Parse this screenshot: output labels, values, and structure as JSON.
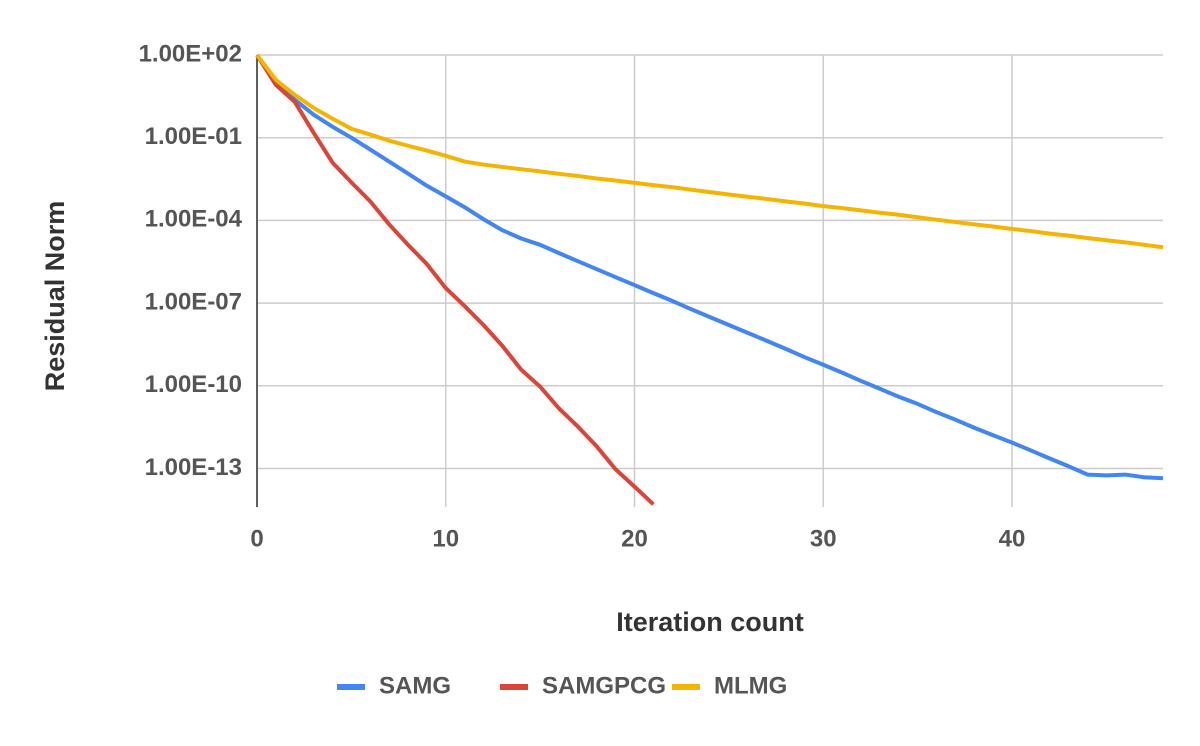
{
  "chart_data": {
    "type": "line",
    "xlabel": "Iteration count",
    "ylabel": "Residual Norm",
    "log_scale": true,
    "grid": true,
    "legend": "bottom",
    "xlim": [
      0,
      48
    ],
    "xticks": [
      0,
      10,
      20,
      30,
      40
    ],
    "ylim": [
      4e-15,
      100
    ],
    "yticks": [
      {
        "value": 100,
        "label": "1.00E+02"
      },
      {
        "value": 0.1,
        "label": "1.00E-01"
      },
      {
        "value": 0.0001,
        "label": "1.00E-04"
      },
      {
        "value": 1e-07,
        "label": "1.00E-07"
      },
      {
        "value": 1e-10,
        "label": "1.00E-10"
      },
      {
        "value": 1e-13,
        "label": "1.00E-13"
      }
    ],
    "series": [
      {
        "name": "SAMG",
        "color": "#4285f4",
        "x": [
          0,
          1,
          2,
          3,
          4,
          5,
          6,
          7,
          8,
          9,
          10,
          11,
          12,
          13,
          14,
          15,
          16,
          17,
          18,
          19,
          20,
          21,
          22,
          23,
          24,
          25,
          26,
          27,
          28,
          29,
          30,
          31,
          32,
          33,
          34,
          35,
          36,
          37,
          38,
          39,
          40,
          41,
          42,
          43,
          44,
          45,
          46,
          47,
          48
        ],
        "values": [
          100,
          10.6,
          2.4,
          0.68,
          0.25,
          0.1,
          0.037,
          0.0136,
          0.005,
          0.0018,
          0.00074,
          0.0003,
          0.00011,
          4.4e-05,
          2.2e-05,
          1.3e-05,
          6.5e-06,
          3.3e-06,
          1.7e-06,
          8.7e-07,
          4.5e-07,
          2.3e-07,
          1.2e-07,
          6e-08,
          3.1e-08,
          1.6e-08,
          8.3e-09,
          4.3e-09,
          2.2e-09,
          1.1e-09,
          5.8e-10,
          3e-10,
          1.5e-10,
          7.8e-11,
          4e-11,
          2.2e-11,
          1.1e-11,
          5.9e-12,
          3e-12,
          1.6e-12,
          8.7e-13,
          4.5e-13,
          2.3e-13,
          1.2e-13,
          6e-14,
          5.6e-14,
          6e-14,
          4.8e-14,
          4.4e-14
        ]
      },
      {
        "name": "SAMGPCG",
        "color": "#db4437",
        "x": [
          0,
          1,
          2,
          3,
          4,
          5,
          6,
          7,
          8,
          9,
          10,
          11,
          12,
          13,
          14,
          15,
          16,
          17,
          18,
          19,
          20,
          21
        ],
        "values": [
          100,
          8.2,
          2,
          0.15,
          0.0125,
          0.0024,
          0.00049,
          7.2e-05,
          1.3e-05,
          2.6e-06,
          3.5e-07,
          7.8e-08,
          1.6e-08,
          2.8e-09,
          3.8e-10,
          9.3e-11,
          1.5e-11,
          3.3e-12,
          6.3e-13,
          9.3e-14,
          2.2e-14,
          5e-15
        ]
      },
      {
        "name": "MLMG",
        "color": "#f4b400",
        "x": [
          0,
          1,
          2,
          3,
          4,
          5,
          6,
          7,
          8,
          9,
          10,
          11,
          12,
          13,
          14,
          15,
          16,
          17,
          18,
          19,
          20,
          21,
          22,
          23,
          24,
          25,
          26,
          27,
          28,
          29,
          30,
          31,
          32,
          33,
          34,
          35,
          36,
          37,
          38,
          39,
          40,
          41,
          42,
          43,
          44,
          45,
          46,
          47,
          48
        ],
        "values": [
          100,
          12.5,
          3.6,
          1.2,
          0.49,
          0.21,
          0.13,
          0.078,
          0.051,
          0.034,
          0.022,
          0.0136,
          0.0106,
          0.0087,
          0.0072,
          0.006,
          0.0049,
          0.0041,
          0.0033,
          0.0028,
          0.0023,
          0.0019,
          0.0016,
          0.0013,
          0.00106,
          0.00087,
          0.00072,
          0.0006,
          0.00049,
          0.00041,
          0.00033,
          0.00028,
          0.00023,
          0.00019,
          0.00016,
          0.00013,
          0.000106,
          8.7e-05,
          7.2e-05,
          6e-05,
          4.9e-05,
          4.1e-05,
          3.3e-05,
          2.8e-05,
          2.3e-05,
          1.9e-05,
          1.6e-05,
          1.3e-05,
          1.06e-05
        ]
      }
    ]
  }
}
